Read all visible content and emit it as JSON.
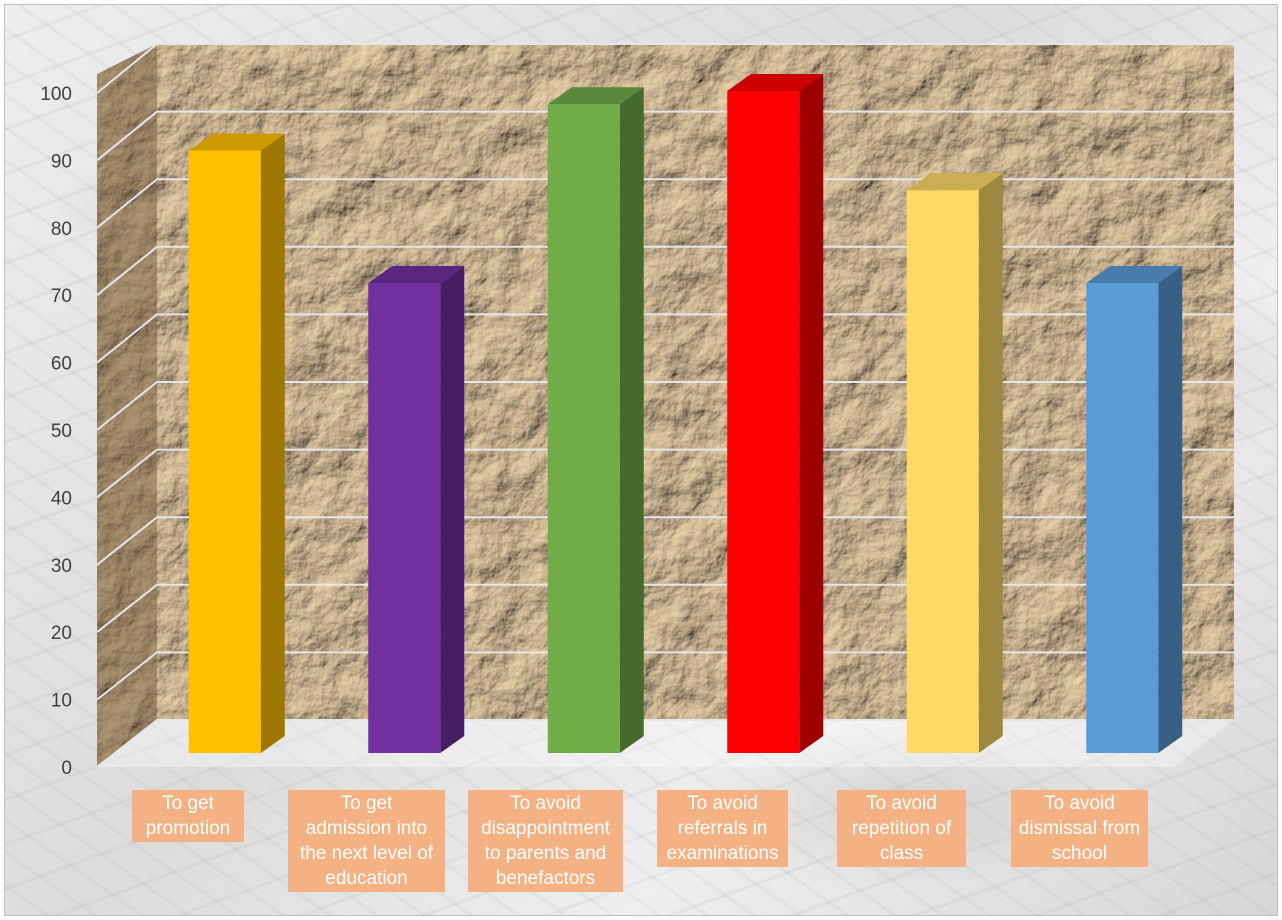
{
  "chart_data": {
    "type": "bar",
    "title": "",
    "xlabel": "",
    "ylabel": "",
    "categories": [
      "To get\npromotion",
      "To get\nadmission into\nthe next level of\neducation",
      "To avoid\ndisappointment\nto parents and\nbenefactors",
      "To avoid\nreferrals in\nexaminations",
      "To avoid\nrepetition of\nclass",
      "To avoid\ndismissal from\nschool"
    ],
    "values": [
      91,
      71,
      98,
      100,
      85,
      71
    ],
    "colors": [
      "#ffc000",
      "#7030a0",
      "#70ad47",
      "#ff0000",
      "#ffd966",
      "#5b9bd5"
    ],
    "label_color": "#f4b183",
    "ylim": [
      0,
      100
    ],
    "yticks": [
      "0",
      "10",
      "20",
      "30",
      "40",
      "50",
      "60",
      "70",
      "80",
      "90",
      "100"
    ],
    "grid": true,
    "legend": "none",
    "style": "3d-column"
  }
}
